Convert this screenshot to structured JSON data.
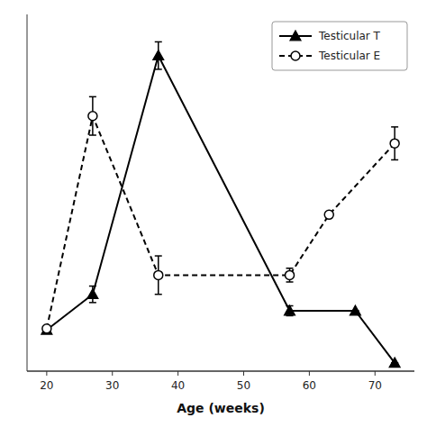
{
  "chart_data": {
    "type": "line",
    "x_label": "Age (weeks)",
    "series": [
      {
        "name": "Testicular T",
        "color": "#000000",
        "marker": "triangle",
        "line_style": "solid",
        "x": [
          20,
          27,
          37,
          57,
          67,
          73
        ],
        "values": [
          0.0,
          0.13,
          1.0,
          0.07,
          0.07,
          -0.12
        ],
        "errors": [
          0.0,
          0.03,
          0.05,
          0.018,
          0.0,
          0.0
        ]
      },
      {
        "name": "Testicular E",
        "color": "#000000",
        "marker": "circle",
        "line_style": "dashed",
        "x": [
          20,
          27,
          37,
          57,
          63,
          73
        ],
        "values": [
          0.005,
          0.78,
          0.2,
          0.2,
          0.42,
          0.68
        ],
        "errors": [
          0.0,
          0.07,
          0.07,
          0.025,
          0.0,
          0.06
        ]
      }
    ],
    "xlim": [
      17,
      76
    ],
    "ylim": [
      -0.15,
      1.15
    ],
    "xticks": [
      20,
      30,
      40,
      50,
      60,
      70
    ],
    "tick_labels": "x",
    "grid": false,
    "legend": "upper right"
  }
}
